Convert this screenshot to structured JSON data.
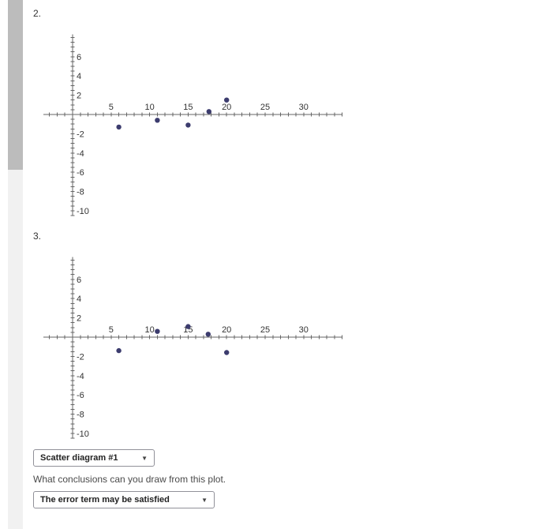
{
  "items": {
    "item2_label": "2.",
    "item3_label": "3."
  },
  "question": {
    "text": "What conclusions can you draw from this plot."
  },
  "selects": {
    "diagram": {
      "value": "Scatter diagram #1"
    },
    "conclusion": {
      "value": "The error term may be satisfied"
    }
  },
  "icons": {
    "dropdown_arrow": "▼"
  },
  "colors": {
    "point": "#3c3c6e",
    "axis": "#666666",
    "scrollbar_thumb": "#bcbcbc",
    "scrollbar_track": "#f1f1f1"
  },
  "chart_data": [
    {
      "type": "scatter",
      "points": [
        [
          6,
          -1.3
        ],
        [
          11,
          -0.6
        ],
        [
          15,
          -1.1
        ],
        [
          17.7,
          0.3
        ],
        [
          20,
          1.5
        ]
      ],
      "x_tick_labels": [
        5,
        10,
        15,
        20,
        25,
        30
      ],
      "y_tick_labels": [
        6,
        4,
        2,
        -2,
        -4,
        -6,
        -8,
        -10
      ],
      "x_range": [
        -3.8,
        35
      ],
      "y_range": [
        -10.5,
        8.3
      ],
      "x_minor_step": 1,
      "y_minor_step": 0.5,
      "grid": false,
      "point_color": "#3c3c6e"
    },
    {
      "type": "scatter",
      "points": [
        [
          6,
          -1.4
        ],
        [
          11,
          0.6
        ],
        [
          15,
          1.1
        ],
        [
          17.6,
          0.3
        ],
        [
          20,
          -1.6
        ]
      ],
      "x_tick_labels": [
        5,
        10,
        15,
        20,
        25,
        30
      ],
      "y_tick_labels": [
        6,
        4,
        2,
        -2,
        -4,
        -6,
        -8,
        -10
      ],
      "x_range": [
        -3.8,
        35
      ],
      "y_range": [
        -10.5,
        8.3
      ],
      "x_minor_step": 1,
      "y_minor_step": 0.5,
      "grid": false,
      "point_color": "#3c3c6e"
    }
  ]
}
